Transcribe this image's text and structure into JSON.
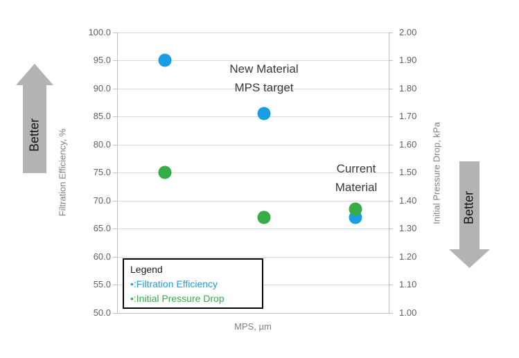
{
  "chart_data": {
    "type": "scatter",
    "xlabel": "MPS, µm",
    "ylabel_left": "Filtration Efficiency, %",
    "ylabel_right": "Initial Pressure Drop, kPa",
    "y_left_range": [
      50.0,
      100.0
    ],
    "y_left_ticks": [
      "100.0",
      "95.0",
      "90.0",
      "85.0",
      "80.0",
      "75.0",
      "70.0",
      "65.0",
      "60.0",
      "55.0",
      "50.0"
    ],
    "y_right_range": [
      1.0,
      2.0
    ],
    "y_right_ticks": [
      "2.00",
      "1.90",
      "1.80",
      "1.70",
      "1.60",
      "1.50",
      "1.40",
      "1.30",
      "1.20",
      "1.10",
      "1.00"
    ],
    "grid": true,
    "legend_position": "bottom-left-inside",
    "series": [
      {
        "name": "Filtration Efficiency",
        "axis": "left",
        "unit": "%",
        "color": "#1b9de2",
        "points": [
          {
            "x_frac": 0.176,
            "y": 95.0
          },
          {
            "x_frac": 0.541,
            "y": 85.5
          },
          {
            "x_frac": 0.878,
            "y": 67.0
          }
        ]
      },
      {
        "name": "Initial Pressure Drop",
        "axis": "right",
        "unit": "kPa",
        "color": "#36ac47",
        "points": [
          {
            "x_frac": 0.176,
            "y": 1.5
          },
          {
            "x_frac": 0.541,
            "y": 1.34
          },
          {
            "x_frac": 0.878,
            "y": 1.37
          }
        ]
      }
    ],
    "annotations": [
      {
        "lines": [
          "New Material",
          "MPS target"
        ]
      },
      {
        "lines": [
          "Current",
          "Material"
        ]
      }
    ]
  },
  "decorations": {
    "left_arrow_label": "Better",
    "right_arrow_label": "Better",
    "arrow_color": "#b3b3b3"
  },
  "legend": {
    "title": "Legend",
    "items": [
      {
        "bullet": "•",
        "label": ":Filtration Efficiency",
        "color": "#1b9de2"
      },
      {
        "bullet": "•",
        "label": ":Initial Pressure Drop",
        "color": "#36ac47"
      }
    ]
  }
}
